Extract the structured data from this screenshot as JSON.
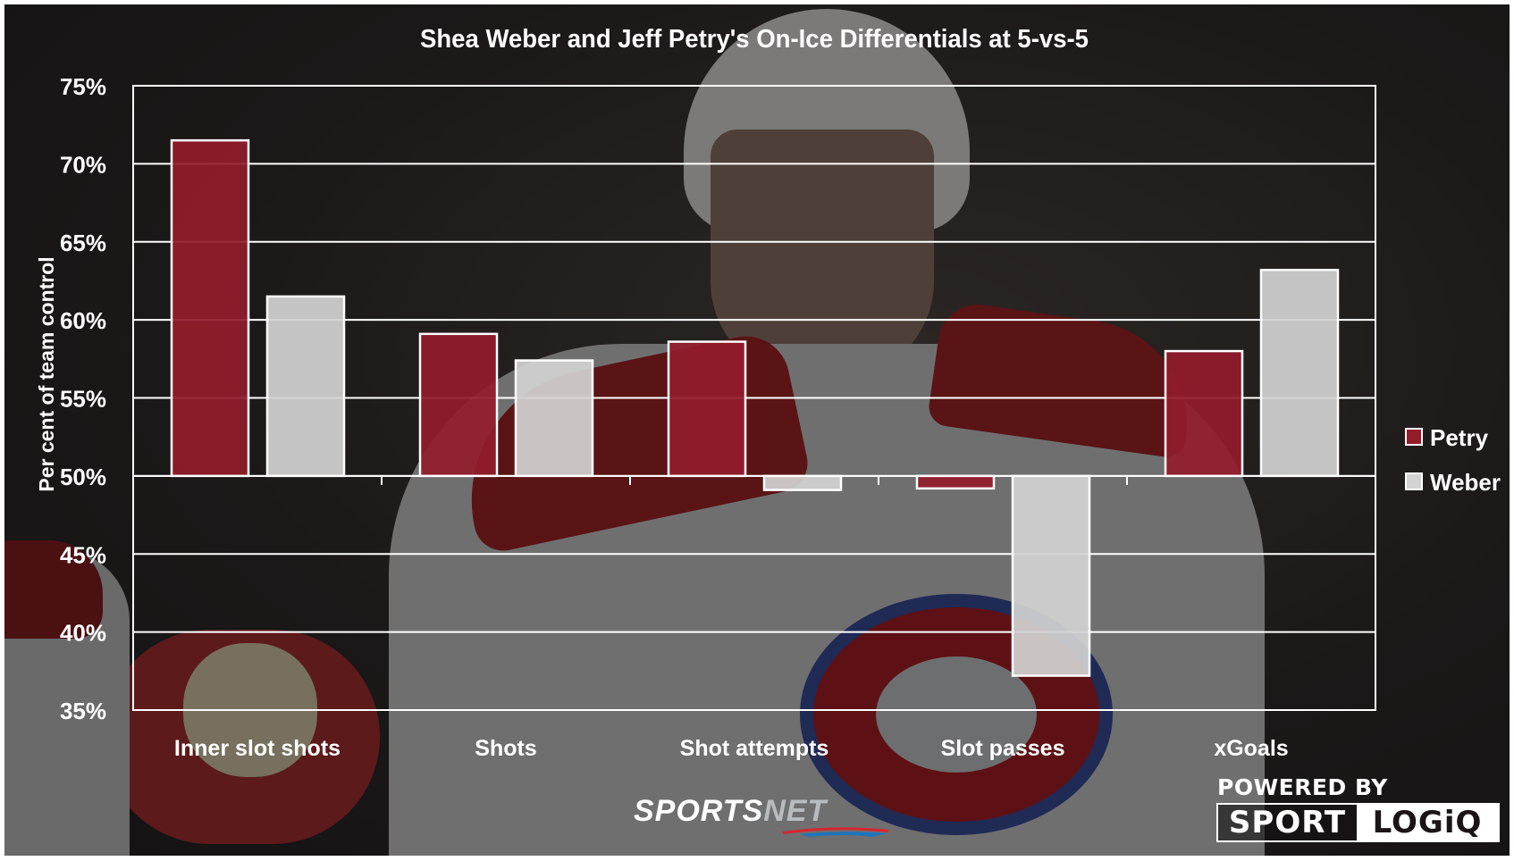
{
  "chart_data": {
    "type": "bar",
    "title": "Shea Weber and Jeff Petry's On-Ice Differentials at 5-vs-5",
    "xlabel": "",
    "ylabel": "Per cent of team control",
    "ylim": [
      35,
      75
    ],
    "baseline": 50,
    "yticks": [
      35,
      40,
      45,
      50,
      55,
      60,
      65,
      70,
      75
    ],
    "ytick_labels": [
      "35%",
      "40%",
      "45%",
      "50%",
      "55%",
      "60%",
      "65%",
      "70%",
      "75%"
    ],
    "grid": true,
    "legend_position": "right",
    "categories": [
      "Inner slot shots",
      "Shots",
      "Shot attempts",
      "Slot passes",
      "xGoals"
    ],
    "series": [
      {
        "name": "Petry",
        "color": "#931c2b",
        "values": [
          71.5,
          59.1,
          58.6,
          49.2,
          58.0
        ]
      },
      {
        "name": "Weber",
        "color": "#d3d3d3",
        "values": [
          61.5,
          57.4,
          49.1,
          37.2,
          63.2
        ]
      }
    ]
  },
  "branding": {
    "sportsnet_part1": "SPORTS",
    "sportsnet_part2": "NET",
    "powered_by": "POWERED BY",
    "logiq_part1": "SPORT",
    "logiq_part2": "LOGiQ"
  }
}
